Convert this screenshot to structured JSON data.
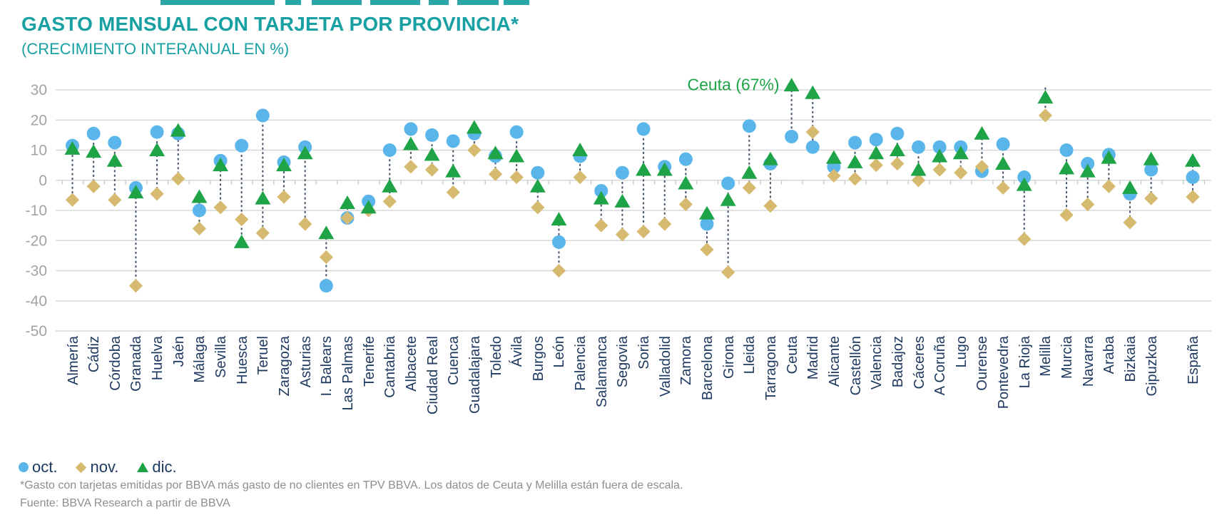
{
  "page": {
    "title": "GASTO MENSUAL CON TARJETA POR PROVINCIA*",
    "subtitle": "(CRECIMIENTO INTERANUAL EN %)",
    "title_color": "#18a0a2"
  },
  "legend": [
    {
      "label": "oct.",
      "marker": "circle",
      "color": "#5ab6ea"
    },
    {
      "label": "nov.",
      "marker": "diamond",
      "color": "#d5ba6f"
    },
    {
      "label": "dic.",
      "marker": "triangle",
      "color": "#1ea346"
    }
  ],
  "footnotes": [
    "*Gasto con tarjetas emitidas por BBVA más gasto de no clientes en TPV BBVA. Los datos de Ceuta y Melilla están fuera de escala.",
    "Fuente: BBVA Research a partir de BBVA"
  ],
  "chart_data": {
    "type": "scatter",
    "title": "GASTO MENSUAL CON TARJETA POR PROVINCIA*",
    "subtitle": "(CRECIMIENTO INTERANUAL EN %)",
    "xlabel": "",
    "ylabel": "",
    "ylim": [
      -50,
      30
    ],
    "yticks": [
      30,
      20,
      10,
      0,
      -10,
      -20,
      -30,
      -40,
      -50
    ],
    "grid": true,
    "legend_position": "bottom-left",
    "offscale_note": "Los datos de Ceuta y Melilla están fuera de escala",
    "annotation": {
      "text": "Ceuta (67%)",
      "target": "Ceuta",
      "color": "#1ea346"
    },
    "series": [
      {
        "key": "oct",
        "name": "oct.",
        "marker": "circle",
        "color": "#5ab6ea"
      },
      {
        "key": "nov",
        "name": "nov.",
        "marker": "diamond",
        "color": "#d5ba6f"
      },
      {
        "key": "dic",
        "name": "dic.",
        "marker": "triangle",
        "color": "#1ea346"
      }
    ],
    "points": [
      {
        "name": "Almería",
        "oct": 11.5,
        "nov": -6.5,
        "dic": 10.5
      },
      {
        "name": "Cádiz",
        "oct": 15.5,
        "nov": -2,
        "dic": 9.5
      },
      {
        "name": "Córdoba",
        "oct": 12.5,
        "nov": -6.5,
        "dic": 6.5
      },
      {
        "name": "Granada",
        "oct": -2.5,
        "nov": -35,
        "dic": -4
      },
      {
        "name": "Huelva",
        "oct": 16,
        "nov": -4.5,
        "dic": 10
      },
      {
        "name": "Jaén",
        "oct": 15.5,
        "nov": 0.5,
        "dic": 16.5
      },
      {
        "name": "Málaga",
        "oct": -10,
        "nov": -16,
        "dic": -5.5
      },
      {
        "name": "Sevilla",
        "oct": 6.5,
        "nov": -9,
        "dic": 5
      },
      {
        "name": "Huesca",
        "oct": 11.5,
        "nov": -13,
        "dic": -20.5
      },
      {
        "name": "Teruel",
        "oct": 21.5,
        "nov": -17.5,
        "dic": -6
      },
      {
        "name": "Zaragoza",
        "oct": 6,
        "nov": -5.5,
        "dic": 5
      },
      {
        "name": "Asturias",
        "oct": 11,
        "nov": -14.5,
        "dic": 9
      },
      {
        "name": "I. Balears",
        "oct": -35,
        "nov": -25.5,
        "dic": -17.5
      },
      {
        "name": "Las Palmas",
        "oct": -12.5,
        "nov": -12.5,
        "dic": -7.5
      },
      {
        "name": "Tenerife",
        "oct": -7,
        "nov": -10,
        "dic": -9
      },
      {
        "name": "Cantabria",
        "oct": 10,
        "nov": -7,
        "dic": -2
      },
      {
        "name": "Albacete",
        "oct": 17,
        "nov": 4.5,
        "dic": 12
      },
      {
        "name": "Ciudad Real",
        "oct": 15,
        "nov": 3.5,
        "dic": 8.5
      },
      {
        "name": "Cuenca",
        "oct": 13,
        "nov": -4,
        "dic": 3
      },
      {
        "name": "Guadalajara",
        "oct": 15.5,
        "nov": 10,
        "dic": 17.5
      },
      {
        "name": "Toledo",
        "oct": 8,
        "nov": 2,
        "dic": 9
      },
      {
        "name": "Ávila",
        "oct": 16,
        "nov": 1,
        "dic": 8
      },
      {
        "name": "Burgos",
        "oct": 2.5,
        "nov": -9,
        "dic": -2
      },
      {
        "name": "León",
        "oct": -20.5,
        "nov": -30,
        "dic": -13
      },
      {
        "name": "Palencia",
        "oct": 8,
        "nov": 1,
        "dic": 10
      },
      {
        "name": "Salamanca",
        "oct": -3.5,
        "nov": -15,
        "dic": -6
      },
      {
        "name": "Segovia",
        "oct": 2.5,
        "nov": -18,
        "dic": -7
      },
      {
        "name": "Soria",
        "oct": 17,
        "nov": -17,
        "dic": 3.5
      },
      {
        "name": "Valladolid",
        "oct": 4.5,
        "nov": -14.5,
        "dic": 3.5
      },
      {
        "name": "Zamora",
        "oct": 7,
        "nov": -8,
        "dic": -1
      },
      {
        "name": "Barcelona",
        "oct": -14.5,
        "nov": -23,
        "dic": -11
      },
      {
        "name": "Girona",
        "oct": -1,
        "nov": -30.5,
        "dic": -6.5
      },
      {
        "name": "Lleida",
        "oct": 18,
        "nov": -2.5,
        "dic": 2.5
      },
      {
        "name": "Tarragona",
        "oct": 5.5,
        "nov": -8.5,
        "dic": 7
      },
      {
        "name": "Ceuta",
        "oct": 14.5,
        "nov": null,
        "dic": 67,
        "dic_display": 31.5,
        "offscale": "dic"
      },
      {
        "name": "Madrid",
        "oct": 11,
        "nov": 16,
        "dic": 29
      },
      {
        "name": "Alicante",
        "oct": 4.5,
        "nov": 1.5,
        "dic": 7.5
      },
      {
        "name": "Castellón",
        "oct": 12.5,
        "nov": 0.5,
        "dic": 6
      },
      {
        "name": "Valencia",
        "oct": 13.5,
        "nov": 5,
        "dic": 9
      },
      {
        "name": "Badajoz",
        "oct": 15.5,
        "nov": 5.5,
        "dic": 10
      },
      {
        "name": "Cáceres",
        "oct": 11,
        "nov": 0,
        "dic": 3.5
      },
      {
        "name": "A Coruña",
        "oct": 11,
        "nov": 3.5,
        "dic": 8
      },
      {
        "name": "Lugo",
        "oct": 11,
        "nov": 2.5,
        "dic": 9
      },
      {
        "name": "Ourense",
        "oct": 3,
        "nov": 4.5,
        "dic": 15.5
      },
      {
        "name": "Pontevedra",
        "oct": 12,
        "nov": -2.5,
        "dic": 5.5
      },
      {
        "name": "La Rioja",
        "oct": 1,
        "nov": -19.5,
        "dic": -1.5
      },
      {
        "name": "Melilla",
        "oct": null,
        "nov": 21.5,
        "dic": 27.5,
        "connector_top": 30.8,
        "offscale": "oct"
      },
      {
        "name": "Murcia",
        "oct": 10,
        "nov": -11.5,
        "dic": 4
      },
      {
        "name": "Navarra",
        "oct": 5.5,
        "nov": -8,
        "dic": 3
      },
      {
        "name": "Araba",
        "oct": 8.5,
        "nov": -2,
        "dic": 7.5
      },
      {
        "name": "Bizkaia",
        "oct": -4.5,
        "nov": -14,
        "dic": -2.5
      },
      {
        "name": "Gipuzkoa",
        "oct": 3.5,
        "nov": -6,
        "dic": 7
      },
      {
        "name": "España",
        "oct": 1,
        "nov": -5.5,
        "dic": 6.5,
        "separated": true
      }
    ]
  }
}
